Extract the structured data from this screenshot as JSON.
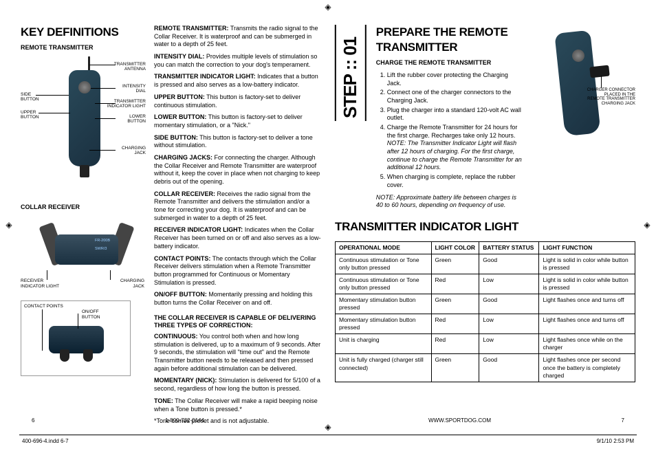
{
  "left": {
    "title": "KEY DEFINITIONS",
    "rt_heading": "REMOTE TRANSMITTER",
    "rt_labels": {
      "antenna": "TRANSMITTER\nANTENNA",
      "intensity": "INTENSITY\nDIAL",
      "ind_light": "TRANSMITTER\nINDICATOR LIGHT",
      "lower": "LOWER\nBUTTON",
      "charging": "CHARGING\nJACK",
      "side": "SIDE\nBUTTON",
      "upper": "UPPER\nBUTTON"
    },
    "cr_heading": "COLLAR RECEIVER",
    "cr_labels": {
      "receiver_light": "RECEIVER\nINDICATOR LIGHT",
      "charging_jack": "CHARGING\nJACK",
      "contact_points": "CONTACT POINTS",
      "onoff": "ON/OFF\nBUTTON",
      "model1": "FR-200B",
      "model2": "SWR/3"
    },
    "defs": [
      {
        "label": "REMOTE TRANSMITTER:",
        "text": " Transmits the radio signal to the Collar Receiver. It is waterproof and can be submerged in water to a depth of 25 feet."
      },
      {
        "label": "INTENSITY DIAL:",
        "text": " Provides multiple levels of stimulation so you can match the correction to your dog's temperament."
      },
      {
        "label": "TRANSMITTER INDICATOR LIGHT:",
        "text": " Indicates that a button is pressed and also serves as a low-battery indicator."
      },
      {
        "label": "UPPER BUTTON:",
        "text": " This button is factory-set to deliver continuous stimulation."
      },
      {
        "label": "LOWER BUTTON:",
        "text": " This button is factory-set to deliver momentary stimulation, or a \"Nick.\""
      },
      {
        "label": "SIDE BUTTON:",
        "text": " This button is factory-set to deliver a tone without stimulation."
      },
      {
        "label": "CHARGING JACKS:",
        "text": " For connecting the charger. Although  the Collar Receiver and Remote Transmitter are waterproof without it, keep the cover in place when not charging to keep debris out of the opening."
      },
      {
        "label": "COLLAR RECEIVER:",
        "text": " Receives the radio signal from the Remote Transmitter and delivers the stimulation and/or a tone for correcting your dog. It is waterproof and can be submerged in water to a depth of 25 feet."
      },
      {
        "label": "RECEIVER INDICATOR LIGHT:",
        "text": " Indicates when the Collar Receiver has been turned on or off and also serves as a low-battery indicator."
      },
      {
        "label": "CONTACT POINTS:",
        "text": " The contacts through which the Collar Receiver delivers stimulation when a Remote Transmitter button programmed for Continuous or Momentary Stimulation is pressed."
      },
      {
        "label": "ON/OFF BUTTON:",
        "text": " Momentarily pressing and holding this button turns the Collar Receiver on and off."
      }
    ],
    "three_types_heading": "THE COLLAR RECEIVER IS CAPABLE OF DELIVERING THREE TYPES OF CORRECTION:",
    "three_types": [
      {
        "label": "CONTINUOUS:",
        "text": " You control both when and how long stimulation is delivered, up to a maximum of 9 seconds. After 9 seconds, the stimulation will \"time out\" and the Remote Transmitter button needs to be released and then pressed again before additional stimulation can be delivered."
      },
      {
        "label": "MOMENTARY (NICK):",
        "text": " Stimulation is delivered for 5/100 of a second, regardless of how long the button is pressed."
      },
      {
        "label": "TONE:",
        "text": " The Collar Receiver will make a rapid beeping noise when a Tone button is pressed.*"
      }
    ],
    "tone_note": "*Tone comes preset and is not adjustable."
  },
  "right": {
    "title": "PREPARE THE REMOTE TRANSMITTER",
    "step_label": "STEP :: 01",
    "charge_heading": "CHARGE THE REMOTE TRANSMITTER",
    "charge_steps": [
      "Lift the rubber cover protecting the Charging Jack.",
      "Connect one of the charger connectors to the Charging Jack.",
      "Plug the charger into a standard 120-volt AC wall outlet.",
      "Charge the Remote Transmitter for 24 hours for the first charge. Recharges take only 12 hours. ",
      "When charging is complete, replace the rubber cover."
    ],
    "charge_step4_note": "NOTE: The Transmitter Indicator Light will flash after 12 hours of charging. For the first charge, continue to charge the Remote Transmitter for an additional 12 hours.",
    "battery_note": "NOTE:  Approximate battery life between charges is 40 to 60 hours, depending on frequency of use.",
    "right_diag_label": "CHARGER CONNECTOR\nPLACED IN THE\nREMOTE TRANSMITTER\nCHARGING JACK",
    "til_title": "TRANSMITTER INDICATOR LIGHT",
    "table": {
      "headers": [
        "OPERATIONAL MODE",
        "LIGHT COLOR",
        "BATTERY STATUS",
        "LIGHT FUNCTION"
      ],
      "rows": [
        [
          "Continuous stimulation or Tone only button pressed",
          "Green",
          "Good",
          "Light is solid in color while button is pressed"
        ],
        [
          "Continuous stimulation or Tone only button pressed",
          "Red",
          "Low",
          "Light is solid in color while button is pressed"
        ],
        [
          "Momentary stimulation button pressed",
          "Green",
          "Good",
          "Light flashes once and turns off"
        ],
        [
          "Momentary stimulation button pressed",
          "Red",
          "Low",
          "Light flashes once and turns off"
        ],
        [
          "Unit is charging",
          "Red",
          "Low",
          "Light flashes once while on the charger"
        ],
        [
          "Unit is fully charged (charger still connected)",
          "Green",
          "Good",
          "Light flashes once per second once the battery is completely charged"
        ]
      ],
      "col_widths": [
        "32%",
        "16%",
        "20%",
        "32%"
      ]
    }
  },
  "footer": {
    "page_left": "6",
    "phone": "1-800-732-0144",
    "url": "WWW.SPORTDOG.COM",
    "page_right": "7",
    "file": "400-696-4.indd   6-7",
    "timestamp": "9/1/10   2:53 PM"
  }
}
